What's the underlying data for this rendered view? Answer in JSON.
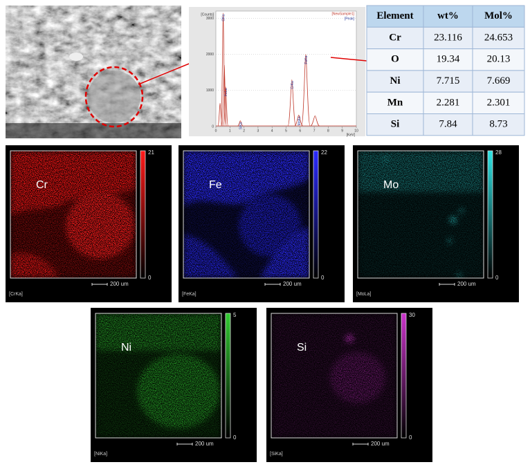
{
  "spectrum": {
    "y_label": "[Counts]",
    "x_label": "[KeV]",
    "legend": [
      "[NewSample1]",
      "[Peak]"
    ],
    "xlim": [
      0,
      10
    ],
    "ylim": [
      0,
      3200
    ],
    "xticks": [
      0,
      1,
      2,
      3,
      4,
      5,
      6,
      7,
      8,
      9,
      10
    ],
    "yticks": [
      0,
      1000,
      2000,
      3000
    ],
    "line_color": "#c0392b",
    "label_color": "#2c3e9e",
    "peaks": [
      {
        "label": "OKa",
        "kev": 0.52,
        "counts": 3150
      },
      {
        "label": null,
        "kev": 0.3,
        "counts": 650
      },
      {
        "label": "FeLa",
        "kev": 0.7,
        "counts": 1100
      },
      {
        "label": null,
        "kev": 0.6,
        "counts": 1700
      },
      {
        "label": "SiKa",
        "kev": 1.74,
        "counts": 160
      },
      {
        "label": "CrKa",
        "kev": 5.41,
        "counts": 1300
      },
      {
        "label": "MnKa",
        "kev": 5.9,
        "counts": 320
      },
      {
        "label": "FeKa",
        "kev": 6.4,
        "counts": 2000
      },
      {
        "label": null,
        "kev": 7.06,
        "counts": 300
      }
    ]
  },
  "table": {
    "header": [
      "Element",
      "wt%",
      "Mol%"
    ],
    "rows": [
      [
        "Cr",
        "23.116",
        "24.653"
      ],
      [
        "O",
        "19.34",
        "20.13"
      ],
      [
        "Ni",
        "7.715",
        "7.669"
      ],
      [
        "Mn",
        "2.281",
        "2.301"
      ],
      [
        "Si",
        "7.84",
        "8.73"
      ]
    ]
  },
  "maps": [
    {
      "element": "Cr",
      "max": 21,
      "min": 0,
      "scale": "200 um",
      "line": "[CrKa]",
      "color": "#ff1a1a"
    },
    {
      "element": "Fe",
      "max": 22,
      "min": 0,
      "scale": "200 um",
      "line": "[FeKa]",
      "color": "#2a2aff"
    },
    {
      "element": "Mo",
      "max": 28,
      "min": 0,
      "scale": "200 um",
      "line": "[MoLa]",
      "color": "#2ee6e6"
    },
    {
      "element": "Ni",
      "max": 5,
      "min": 0,
      "scale": "200 um",
      "line": "[NiKa]",
      "color": "#33cc33"
    },
    {
      "element": "Si",
      "max": 30,
      "min": 0,
      "scale": "200 um",
      "line": "[SiKa]",
      "color": "#cc33cc"
    }
  ]
}
